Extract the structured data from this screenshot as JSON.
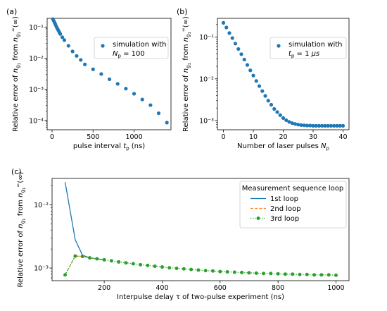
{
  "chart_data": [
    {
      "id": "a",
      "type": "scatter",
      "panel_label": "(a)",
      "xlabel": "pulse interval t_p (ns)",
      "ylabel": "Relative error of n_g1 from n_g1^∞(∞)",
      "xlim": [
        -60,
        1450
      ],
      "ylim_log10": [
        -4.3,
        -0.72
      ],
      "yscale": "log",
      "xticks": [
        0,
        500,
        1000
      ],
      "xtick_labels": [
        "0",
        "500",
        "1000"
      ],
      "ytick_labels": [
        "10⁻⁴",
        "10⁻³",
        "10⁻²",
        "10⁻¹"
      ],
      "legend": {
        "line1": "simulation with",
        "line2": "N_p = 100",
        "position": "top-right"
      },
      "color": "#1f77b4",
      "x": [
        10,
        20,
        30,
        40,
        50,
        60,
        70,
        80,
        90,
        100,
        125,
        150,
        200,
        250,
        300,
        350,
        400,
        500,
        600,
        700,
        800,
        900,
        1000,
        1100,
        1200,
        1300,
        1400
      ],
      "y": [
        0.18,
        0.16,
        0.14,
        0.123,
        0.107,
        0.094,
        0.084,
        0.075,
        0.067,
        0.06,
        0.047,
        0.038,
        0.025,
        0.0165,
        0.0118,
        0.0088,
        0.0063,
        0.0044,
        0.0031,
        0.0021,
        0.0015,
        0.00105,
        0.00072,
        0.00047,
        0.00031,
        0.00017,
        8.5e-05
      ]
    },
    {
      "id": "b",
      "type": "scatter",
      "panel_label": "(b)",
      "xlabel": "Number of laser pulses N_p",
      "ylabel": "Relative error of n_g1 from n_g1^∞(∞)",
      "xlim": [
        -2,
        42
      ],
      "ylim_log10": [
        -3.22,
        -0.55
      ],
      "yscale": "log",
      "xticks": [
        0,
        10,
        20,
        30,
        40
      ],
      "xtick_labels": [
        "0",
        "10",
        "20",
        "30",
        "40"
      ],
      "ytick_labels": [
        "10⁻³",
        "10⁻²",
        "10⁻¹"
      ],
      "legend": {
        "line1": "simulation with",
        "line2": "t_p = 1 μs",
        "position": "top-right"
      },
      "color": "#1f77b4",
      "x": [
        0,
        1,
        2,
        3,
        4,
        5,
        6,
        7,
        8,
        9,
        10,
        11,
        12,
        13,
        14,
        15,
        16,
        17,
        18,
        19,
        20,
        21,
        22,
        23,
        24,
        25,
        26,
        27,
        28,
        29,
        30,
        31,
        32,
        33,
        34,
        35,
        36,
        37,
        38,
        39,
        40
      ],
      "y": [
        0.22,
        0.17,
        0.125,
        0.095,
        0.07,
        0.052,
        0.039,
        0.029,
        0.0215,
        0.016,
        0.012,
        0.0089,
        0.0067,
        0.0051,
        0.0039,
        0.003,
        0.0024,
        0.0019,
        0.0016,
        0.00135,
        0.00115,
        0.00102,
        0.00093,
        0.00087,
        0.00083,
        0.0008,
        0.00078,
        0.00077,
        0.00076,
        0.00076,
        0.00075,
        0.00075,
        0.00075,
        0.00075,
        0.00075,
        0.00075,
        0.00075,
        0.00075,
        0.00075,
        0.00075,
        0.00075
      ]
    },
    {
      "id": "c",
      "type": "line",
      "panel_label": "(c)",
      "xlabel": "Interpulse delay τ of two-pulse experiment (ns)",
      "ylabel": "Relative error of n_g1 from n_g1^∞(∞)",
      "xlim": [
        20,
        1045
      ],
      "ylim_log10": [
        -3.2,
        -1.58
      ],
      "yscale": "log",
      "xticks": [
        200,
        400,
        600,
        800,
        1000
      ],
      "xtick_labels": [
        "200",
        "400",
        "600",
        "800",
        "1000"
      ],
      "ytick_labels": [
        "10⁻³",
        "10⁻²"
      ],
      "legend": {
        "title": "Measurement sequence loop",
        "position": "top-right"
      },
      "series": [
        {
          "name": "1st loop",
          "color": "#1f77b4",
          "style": "solid",
          "marker": false,
          "x": [
            65,
            100,
            125,
            150,
            175,
            200
          ],
          "y": [
            0.023,
            0.0028,
            0.0016,
            0.00145,
            0.0014,
            0.00135
          ]
        },
        {
          "name": "2nd loop",
          "color": "#ff7f0e",
          "style": "dashed",
          "marker": false,
          "x": [
            65,
            100,
            125,
            150,
            175
          ],
          "y": [
            0.00078,
            0.00155,
            0.00153,
            0.00145,
            0.0014
          ]
        },
        {
          "name": "3rd loop",
          "color": "#2ca02c",
          "style": "dotted",
          "marker": true,
          "x": [
            65,
            100,
            125,
            150,
            175,
            200,
            225,
            250,
            275,
            300,
            325,
            350,
            375,
            400,
            425,
            450,
            475,
            500,
            525,
            550,
            575,
            600,
            625,
            650,
            675,
            700,
            725,
            750,
            775,
            800,
            825,
            850,
            875,
            900,
            925,
            950,
            975,
            1000
          ],
          "y": [
            0.00078,
            0.00155,
            0.00153,
            0.00145,
            0.0014,
            0.00135,
            0.0013,
            0.00125,
            0.00121,
            0.00117,
            0.00113,
            0.0011,
            0.00107,
            0.00104,
            0.00101,
            0.00099,
            0.00097,
            0.00095,
            0.00093,
            0.00091,
            0.0009,
            0.00088,
            0.00087,
            0.00086,
            0.00085,
            0.00084,
            0.00083,
            0.00082,
            0.00082,
            0.00081,
            0.0008,
            0.0008,
            0.00079,
            0.00079,
            0.00078,
            0.00078,
            0.00078,
            0.00077
          ]
        }
      ]
    }
  ]
}
